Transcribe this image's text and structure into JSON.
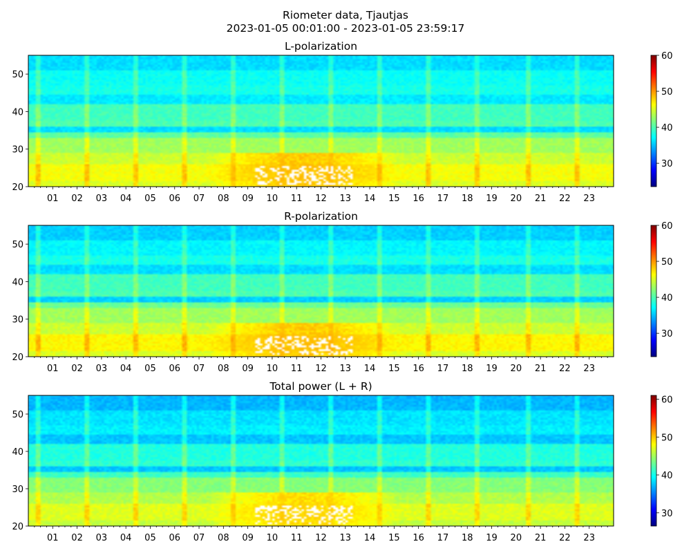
{
  "figure": {
    "suptitle_line1": "Riometer data, Tjautjas",
    "suptitle_line2": "2023-01-05 00:01:00 - 2023-01-05 23:59:17"
  },
  "colormap": [
    "#00007f",
    "#0000ff",
    "#007fff",
    "#00ffff",
    "#7fff7f",
    "#ffff00",
    "#ff7f00",
    "#ff0000",
    "#7f0000"
  ],
  "chart_data": [
    {
      "type": "heatmap",
      "title": "L-polarization",
      "x_ticks": [
        "01",
        "02",
        "03",
        "04",
        "05",
        "06",
        "07",
        "08",
        "09",
        "10",
        "11",
        "12",
        "13",
        "14",
        "15",
        "16",
        "17",
        "18",
        "19",
        "20",
        "21",
        "22",
        "23"
      ],
      "x_range_hours": [
        0,
        24
      ],
      "y_ticks": [
        20,
        30,
        40,
        50
      ],
      "ylim": [
        20,
        55
      ],
      "colorbar": {
        "ticks": [
          30,
          40,
          50,
          60
        ],
        "range": [
          23.5,
          60
        ]
      },
      "features": {
        "bands": [
          {
            "y": [
              20,
              21.5
            ],
            "value": 45
          },
          {
            "y": [
              21.5,
              26
            ],
            "value": 46
          },
          {
            "y": [
              26,
              29
            ],
            "value": 44.5
          },
          {
            "y": [
              29,
              33
            ],
            "value": 43
          },
          {
            "y": [
              33,
              34.5
            ],
            "value": 40.5
          },
          {
            "y": [
              34.5,
              35.8
            ],
            "value": 36
          },
          {
            "y": [
              35.8,
              37.5
            ],
            "value": 40
          },
          {
            "y": [
              37.5,
              42
            ],
            "value": 39.5
          },
          {
            "y": [
              42,
              44.5
            ],
            "value": 36.5
          },
          {
            "y": [
              44.5,
              47
            ],
            "value": 38
          },
          {
            "y": [
              47,
              51
            ],
            "value": 37.5
          },
          {
            "y": [
              51,
              55
            ],
            "value": 36
          }
        ],
        "spike_hours": [
          0.4,
          2.4,
          4.4,
          6.4,
          8.4,
          10.4,
          12.4,
          14.4,
          16.4,
          18.4,
          20.5,
          22.5
        ],
        "enhanced_region": {
          "hours": [
            7.3,
            15.3
          ],
          "y": [
            20,
            29
          ],
          "value": 49
        },
        "saturated_region": {
          "hours": [
            9.3,
            13.3
          ],
          "y": [
            20.5,
            25.5
          ],
          "value": 61
        }
      }
    },
    {
      "type": "heatmap",
      "title": "R-polarization",
      "x_ticks": [
        "01",
        "02",
        "03",
        "04",
        "05",
        "06",
        "07",
        "08",
        "09",
        "10",
        "11",
        "12",
        "13",
        "14",
        "15",
        "16",
        "17",
        "18",
        "19",
        "20",
        "21",
        "22",
        "23"
      ],
      "x_range_hours": [
        0,
        24
      ],
      "y_ticks": [
        20,
        30,
        40,
        50
      ],
      "ylim": [
        20,
        55
      ],
      "colorbar": {
        "ticks": [
          30,
          40,
          50,
          60
        ],
        "range": [
          23.5,
          60
        ]
      },
      "features": {
        "bands": [
          {
            "y": [
              20,
              21.5
            ],
            "value": 45
          },
          {
            "y": [
              21.5,
              26
            ],
            "value": 46.5
          },
          {
            "y": [
              26,
              29
            ],
            "value": 44.5
          },
          {
            "y": [
              29,
              33
            ],
            "value": 43
          },
          {
            "y": [
              33,
              34.5
            ],
            "value": 41
          },
          {
            "y": [
              34.5,
              35.8
            ],
            "value": 35.5
          },
          {
            "y": [
              35.8,
              37.5
            ],
            "value": 40
          },
          {
            "y": [
              37.5,
              42
            ],
            "value": 39.5
          },
          {
            "y": [
              42,
              44.5
            ],
            "value": 36
          },
          {
            "y": [
              44.5,
              47
            ],
            "value": 38
          },
          {
            "y": [
              47,
              51
            ],
            "value": 37
          },
          {
            "y": [
              51,
              55
            ],
            "value": 35.5
          }
        ],
        "spike_hours": [
          0.4,
          2.4,
          4.4,
          6.4,
          8.4,
          10.4,
          12.4,
          14.4,
          16.4,
          18.4,
          20.5,
          22.5
        ],
        "enhanced_region": {
          "hours": [
            7.3,
            15.3
          ],
          "y": [
            20,
            29
          ],
          "value": 49
        },
        "saturated_region": {
          "hours": [
            9.3,
            13.3
          ],
          "y": [
            20.5,
            25.5
          ],
          "value": 61
        }
      }
    },
    {
      "type": "heatmap",
      "title": "Total power (L + R)",
      "x_ticks": [
        "01",
        "02",
        "03",
        "04",
        "05",
        "06",
        "07",
        "08",
        "09",
        "10",
        "11",
        "12",
        "13",
        "14",
        "15",
        "16",
        "17",
        "18",
        "19",
        "20",
        "21",
        "22",
        "23"
      ],
      "x_range_hours": [
        0,
        24
      ],
      "y_ticks": [
        20,
        30,
        40,
        50
      ],
      "ylim": [
        20,
        55
      ],
      "colorbar": {
        "ticks": [
          30,
          40,
          50,
          60
        ],
        "range": [
          26.5,
          61
        ]
      },
      "features": {
        "bands": [
          {
            "y": [
              20,
              21.5
            ],
            "value": 46
          },
          {
            "y": [
              21.5,
              26
            ],
            "value": 47
          },
          {
            "y": [
              26,
              29
            ],
            "value": 45.5
          },
          {
            "y": [
              29,
              33
            ],
            "value": 44
          },
          {
            "y": [
              33,
              34.5
            ],
            "value": 41.5
          },
          {
            "y": [
              34.5,
              35.8
            ],
            "value": 37.5
          },
          {
            "y": [
              35.8,
              37.5
            ],
            "value": 41
          },
          {
            "y": [
              37.5,
              42
            ],
            "value": 40.5
          },
          {
            "y": [
              42,
              44.5
            ],
            "value": 37.5
          },
          {
            "y": [
              44.5,
              47
            ],
            "value": 39
          },
          {
            "y": [
              47,
              51
            ],
            "value": 38.5
          },
          {
            "y": [
              51,
              55
            ],
            "value": 37
          }
        ],
        "spike_hours": [
          0.4,
          2.4,
          4.4,
          6.4,
          8.4,
          10.4,
          12.4,
          14.4,
          16.4,
          18.4,
          20.5,
          22.5
        ],
        "enhanced_region": {
          "hours": [
            7.3,
            15.3
          ],
          "y": [
            20,
            29
          ],
          "value": 50
        },
        "saturated_region": {
          "hours": [
            9.3,
            13.3
          ],
          "y": [
            20.5,
            25.5
          ],
          "value": 62
        }
      }
    }
  ]
}
